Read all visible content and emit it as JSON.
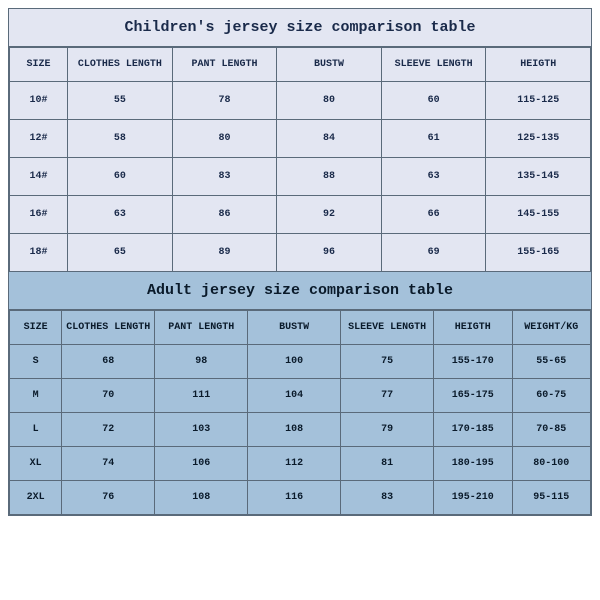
{
  "children": {
    "title": "Children's jersey size comparison table",
    "columns": [
      "SIZE",
      "CLOTHES LENGTH",
      "PANT LENGTH",
      "BUSTW",
      "SLEEVE LENGTH",
      "HEIGTH"
    ],
    "rows": [
      [
        "10#",
        "55",
        "78",
        "80",
        "60",
        "115-125"
      ],
      [
        "12#",
        "58",
        "80",
        "84",
        "61",
        "125-135"
      ],
      [
        "14#",
        "60",
        "83",
        "88",
        "63",
        "135-145"
      ],
      [
        "16#",
        "63",
        "86",
        "92",
        "66",
        "145-155"
      ],
      [
        "18#",
        "65",
        "89",
        "96",
        "69",
        "155-165"
      ]
    ],
    "title_bg": "#e3e6f2",
    "row_bg": "#e3e6f2",
    "border_color": "#5a6a7a",
    "text_color": "#1a2a4a",
    "title_fontsize": 15,
    "cell_fontsize": 10
  },
  "adult": {
    "title": "Adult jersey size comparison table",
    "columns": [
      "SIZE",
      "CLOTHES LENGTH",
      "PANT LENGTH",
      "BUSTW",
      "SLEEVE LENGTH",
      "HEIGTH",
      "WEIGHT/KG"
    ],
    "rows": [
      [
        "S",
        "68",
        "98",
        "100",
        "75",
        "155-170",
        "55-65"
      ],
      [
        "M",
        "70",
        "111",
        "104",
        "77",
        "165-175",
        "60-75"
      ],
      [
        "L",
        "72",
        "103",
        "108",
        "79",
        "170-185",
        "70-85"
      ],
      [
        "XL",
        "74",
        "106",
        "112",
        "81",
        "180-195",
        "80-100"
      ],
      [
        "2XL",
        "76",
        "108",
        "116",
        "83",
        "195-210",
        "95-115"
      ]
    ],
    "title_bg": "#a4c1da",
    "row_bg": "#a4c1da",
    "border_color": "#5a6a7a",
    "text_color": "#0a1a2a",
    "title_fontsize": 15,
    "cell_fontsize": 10
  }
}
